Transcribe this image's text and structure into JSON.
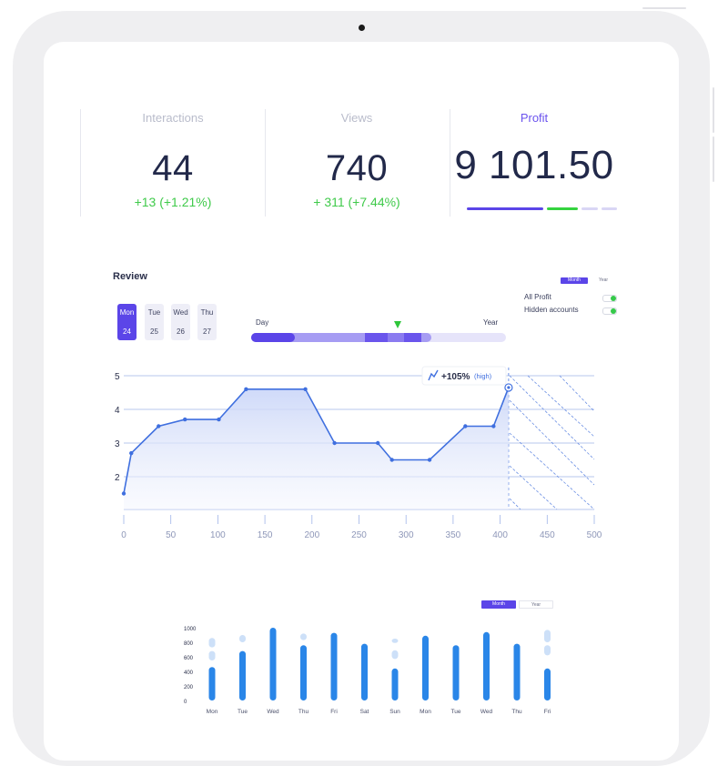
{
  "stats": [
    {
      "label": "Interactions",
      "value": "44",
      "change": "+13 (+1.21%)"
    },
    {
      "label": "Views",
      "value": "740",
      "change": "+ 311 (+7.44%)"
    },
    {
      "label": "Profit",
      "value": "9 101.50",
      "change": ""
    }
  ],
  "profit_bar": {
    "segments": [
      {
        "color": "#5b45e8",
        "share": 0.55
      },
      {
        "color": "#35d33f",
        "share": 0.22
      },
      {
        "color": "#d9d6f5",
        "share": 0.12
      },
      {
        "color": "#d9d6f5",
        "share": 0.11
      }
    ]
  },
  "review": {
    "title": "Review",
    "days": [
      {
        "name": "Mon",
        "date": "24",
        "active": true
      },
      {
        "name": "Tue",
        "date": "25",
        "active": false
      },
      {
        "name": "Wed",
        "date": "26",
        "active": false
      },
      {
        "name": "Thu",
        "date": "27",
        "active": false
      }
    ],
    "period_tabs": [
      "Month",
      "Year"
    ],
    "legend": [
      {
        "label": "All Profit",
        "on": true
      },
      {
        "label": "Hidden accounts",
        "on": true
      }
    ],
    "range": {
      "start_label": "Day",
      "end_label": "Year",
      "marker_position": 0.57
    }
  },
  "chart_data": [
    {
      "type": "area",
      "x": [
        0,
        8,
        37,
        65,
        101,
        130,
        193,
        224,
        270,
        285,
        325,
        363,
        393,
        409
      ],
      "y": [
        1.5,
        2.7,
        3.5,
        3.7,
        3.7,
        4.6,
        4.6,
        3.0,
        3.0,
        2.5,
        2.5,
        3.5,
        3.5,
        4.65
      ],
      "xticks": [
        "0",
        "50",
        "100",
        "150",
        "200",
        "250",
        "300",
        "350",
        "400",
        "450",
        "500"
      ],
      "yticks": [
        "2",
        "3",
        "4",
        "5"
      ],
      "xlim": [
        0,
        500
      ],
      "ylim": [
        1,
        5
      ],
      "annotation": {
        "text": "+105%",
        "sub": "(high)"
      },
      "accent": "#3f6fdf",
      "grid": true
    },
    {
      "type": "bar",
      "categories": [
        "Mon",
        "Tue",
        "Wed",
        "Thu",
        "Fri",
        "Sat",
        "Sun",
        "Mon",
        "Tue",
        "Wed",
        "Thu",
        "Fri"
      ],
      "values": [
        460,
        680,
        1000,
        760,
        930,
        780,
        440,
        890,
        760,
        940,
        780,
        440
      ],
      "ghost": [
        [
          [
            730,
            860
          ],
          [
            550,
            680
          ]
        ],
        [
          [
            800,
            900
          ]
        ],
        [],
        [
          [
            830,
            920
          ]
        ],
        [],
        [],
        [
          [
            790,
            850
          ],
          [
            570,
            690
          ]
        ],
        [],
        [],
        [],
        [],
        [
          [
            800,
            970
          ],
          [
            620,
            760
          ]
        ]
      ],
      "yticks": [
        "0",
        "200",
        "400",
        "600",
        "800",
        "1000"
      ],
      "ylim": [
        0,
        1000
      ],
      "period_tabs": [
        "Month",
        "Year"
      ],
      "color": "#2a86e8",
      "ghost_color": "#cde0f8"
    }
  ]
}
